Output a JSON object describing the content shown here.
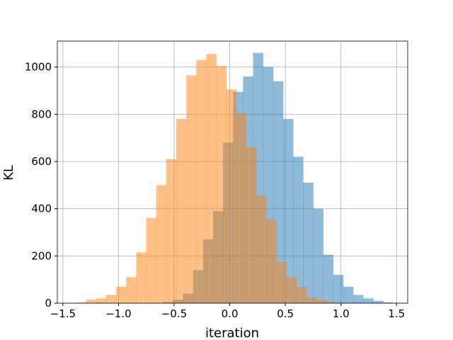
{
  "chart_data": {
    "type": "bar",
    "subtype": "overlapping-histogram",
    "title": "",
    "xlabel": "iteration",
    "ylabel": "KL",
    "xlim": [
      -1.55,
      1.6
    ],
    "ylim": [
      0,
      1110
    ],
    "xticks": [
      -1.5,
      -1.0,
      -0.5,
      0.0,
      0.5,
      1.0,
      1.5
    ],
    "xtick_labels": [
      "−1.5",
      "−1.0",
      "−0.5",
      "0.0",
      "0.5",
      "1.0",
      "1.5"
    ],
    "yticks": [
      0,
      200,
      400,
      600,
      800,
      1000
    ],
    "ytick_labels": [
      "0",
      "200",
      "400",
      "600",
      "800",
      "1000"
    ],
    "grid": true,
    "alpha": 0.5,
    "series": [
      {
        "color": "#1f77b4",
        "bins": [
          [
            -0.6,
            -0.51,
            5
          ],
          [
            -0.51,
            -0.42,
            15
          ],
          [
            -0.42,
            -0.33,
            40
          ],
          [
            -0.33,
            -0.24,
            140
          ],
          [
            -0.24,
            -0.15,
            270
          ],
          [
            -0.15,
            -0.06,
            390
          ],
          [
            -0.06,
            0.03,
            680
          ],
          [
            0.03,
            0.12,
            895
          ],
          [
            0.12,
            0.21,
            960
          ],
          [
            0.21,
            0.3,
            1060
          ],
          [
            0.3,
            0.39,
            1000
          ],
          [
            0.39,
            0.48,
            940
          ],
          [
            0.48,
            0.57,
            780
          ],
          [
            0.57,
            0.66,
            620
          ],
          [
            0.66,
            0.75,
            510
          ],
          [
            0.75,
            0.84,
            400
          ],
          [
            0.84,
            0.93,
            205
          ],
          [
            0.93,
            1.02,
            120
          ],
          [
            1.02,
            1.11,
            70
          ],
          [
            1.11,
            1.2,
            35
          ],
          [
            1.2,
            1.29,
            20
          ],
          [
            1.29,
            1.38,
            10
          ],
          [
            1.38,
            1.47,
            3
          ]
        ]
      },
      {
        "color": "#ff7f0e",
        "bins": [
          [
            -1.38,
            -1.29,
            3
          ],
          [
            -1.29,
            -1.2,
            15
          ],
          [
            -1.2,
            -1.11,
            20
          ],
          [
            -1.11,
            -1.02,
            35
          ],
          [
            -1.02,
            -0.93,
            70
          ],
          [
            -0.93,
            -0.84,
            110
          ],
          [
            -0.84,
            -0.75,
            215
          ],
          [
            -0.75,
            -0.66,
            360
          ],
          [
            -0.66,
            -0.57,
            500
          ],
          [
            -0.57,
            -0.48,
            610
          ],
          [
            -0.48,
            -0.39,
            780
          ],
          [
            -0.39,
            -0.3,
            965
          ],
          [
            -0.3,
            -0.21,
            1030
          ],
          [
            -0.21,
            -0.12,
            1055
          ],
          [
            -0.12,
            -0.03,
            1005
          ],
          [
            -0.03,
            0.06,
            905
          ],
          [
            0.06,
            0.15,
            805
          ],
          [
            0.15,
            0.24,
            660
          ],
          [
            0.24,
            0.33,
            455
          ],
          [
            0.33,
            0.42,
            355
          ],
          [
            0.42,
            0.51,
            175
          ],
          [
            0.51,
            0.6,
            110
          ],
          [
            0.6,
            0.69,
            70
          ],
          [
            0.69,
            0.78,
            25
          ],
          [
            0.78,
            0.87,
            15
          ],
          [
            0.87,
            0.96,
            5
          ]
        ]
      }
    ]
  }
}
